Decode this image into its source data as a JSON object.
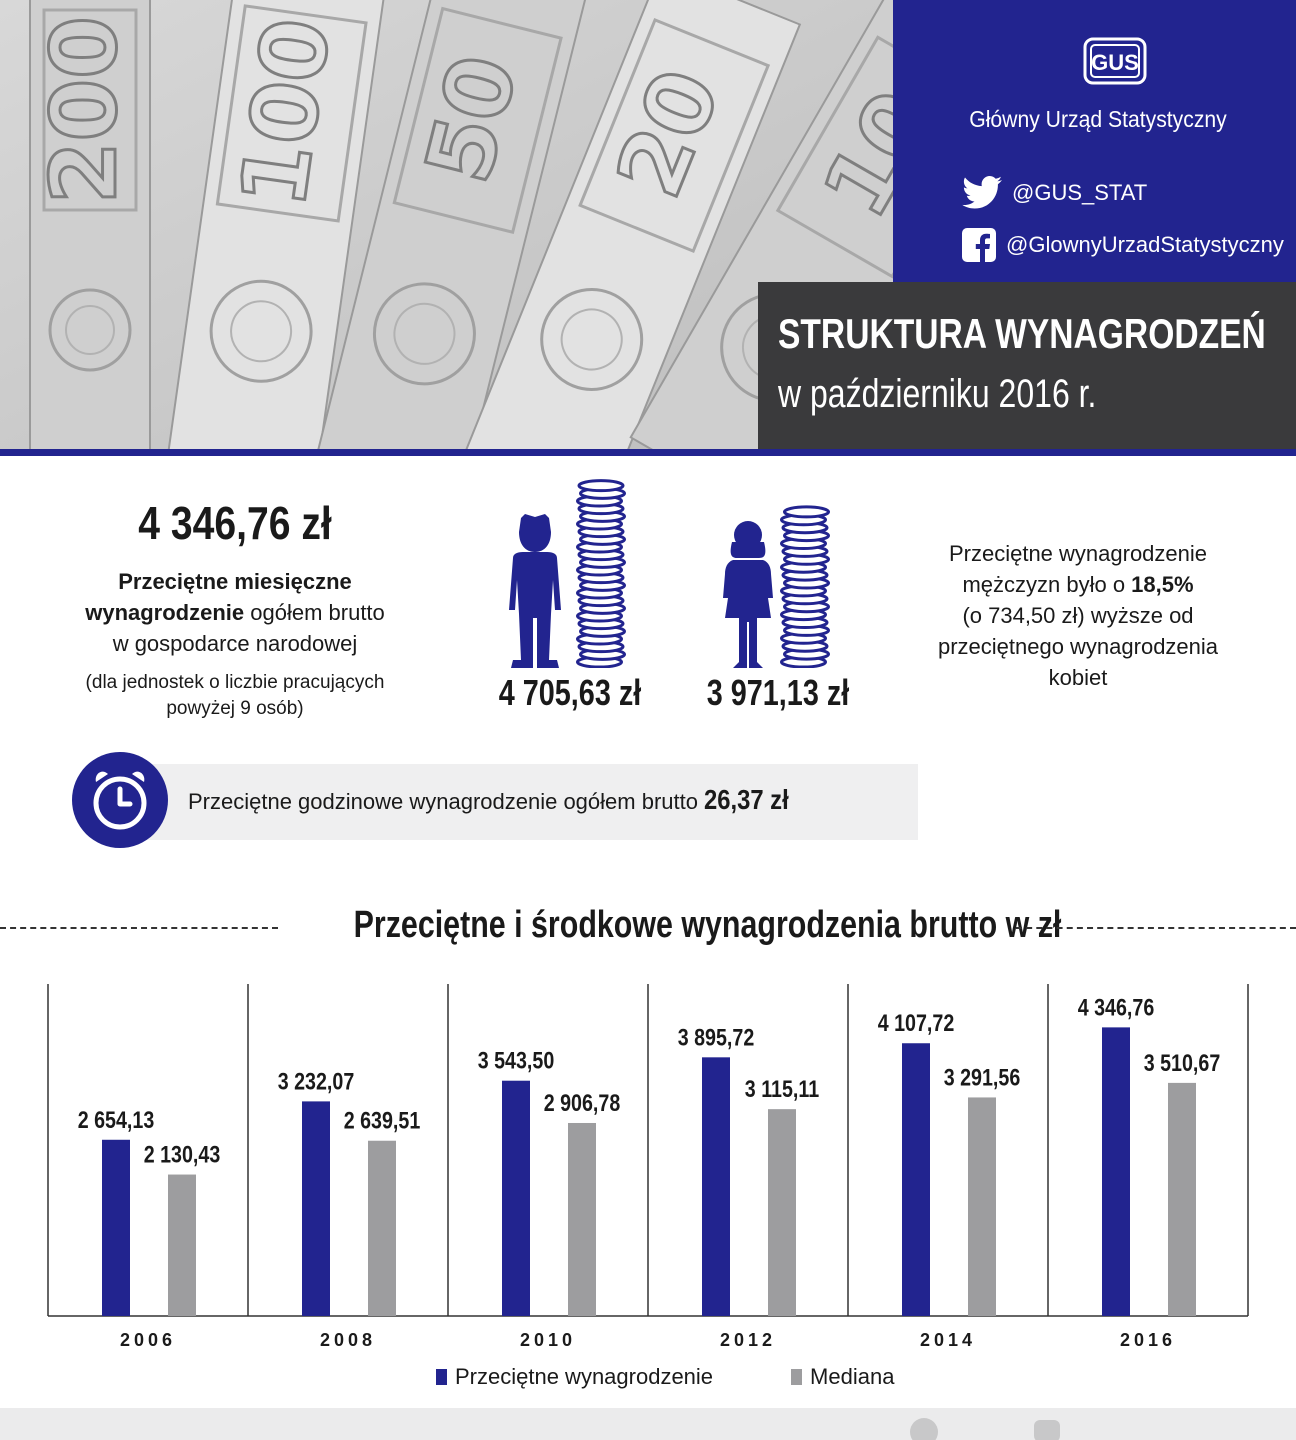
{
  "header": {
    "org_name": "Główny Urząd Statystyczny",
    "logo_text": "GUS",
    "twitter": "@GUS_STAT",
    "facebook": "@GlownyUrzadStatystyczny",
    "title": "STRUKTURA WYNAGRODZEŃ",
    "subtitle": "w październiku 2016 r.",
    "banknote_denominations": [
      "200",
      "100",
      "50",
      "20",
      "10"
    ],
    "colors": {
      "brand_blue": "#22248f",
      "dark_gray": "#3a3a3c",
      "median_gray": "#9d9d9f"
    }
  },
  "stats": {
    "avg_value": "4 346,76 zł",
    "avg_desc_bold1": "Przeciętne miesięczne",
    "avg_desc_bold2": "wynagrodzenie",
    "avg_desc_rest": " ogółem brutto",
    "avg_desc_line3": "w gospodarce narodowej",
    "avg_note_line1": "(dla jednostek o liczbie pracujących",
    "avg_note_line2": "powyżej 9 osób)",
    "male_value": "4 705,63 zł",
    "female_value": "3 971,13 zł",
    "gap_line1": "Przeciętne wynagrodzenie",
    "gap_line2a": "mężczyzn było o ",
    "gap_line2b": "18,5%",
    "gap_line3": "(o 734,50 zł) wyższe od",
    "gap_line4": "przeciętnego wynagrodzenia",
    "gap_line5": "kobiet",
    "hourly_text": "Przeciętne godzinowe wynagrodzenie ogółem brutto ",
    "hourly_value": "26,37 zł"
  },
  "chart_data": {
    "type": "bar",
    "title": "Przeciętne i środkowe wynagrodzenia brutto w zł",
    "categories": [
      "2006",
      "2008",
      "2010",
      "2012",
      "2014",
      "2016"
    ],
    "series": [
      {
        "name": "Przeciętne wynagrodzenie",
        "color": "#22248f",
        "values": [
          2654.13,
          3232.07,
          3543.5,
          3895.72,
          4107.72,
          4346.76
        ],
        "labels": [
          "2 654,13",
          "3 232,07",
          "3 543,50",
          "3 895,72",
          "4 107,72",
          "4 346,76"
        ]
      },
      {
        "name": "Mediana",
        "color": "#9d9d9f",
        "values": [
          2130.43,
          2639.51,
          2906.78,
          3115.11,
          3291.56,
          3510.67
        ],
        "labels": [
          "2 130,43",
          "2 639,51",
          "2 906,78",
          "3 115,11",
          "3 291,56",
          "3 510,67"
        ]
      }
    ],
    "ylim": [
      0,
      5000
    ],
    "grid": false,
    "legend": "bottom"
  }
}
